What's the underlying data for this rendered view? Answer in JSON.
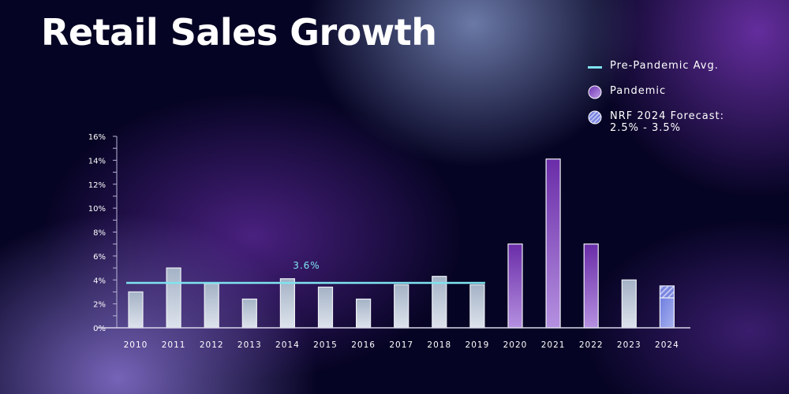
{
  "title": "Retail Sales Growth",
  "legend": [
    {
      "label": "Pre-Pandemic Avg.",
      "icon": "line-swatch",
      "color": "#7fe3f0"
    },
    {
      "label": "Pandemic",
      "icon": "circle-swatch",
      "color": "#8a4fc9"
    },
    {
      "label": "NRF 2024 Forecast:",
      "label2": "2.5% - 3.5%",
      "icon": "hatched-circle-swatch",
      "color": "#7b86e0"
    }
  ],
  "chart_data": {
    "type": "bar",
    "title": "Retail Sales Growth",
    "categories": [
      "2010",
      "2011",
      "2012",
      "2013",
      "2014",
      "2015",
      "2016",
      "2017",
      "2018",
      "2019",
      "2020",
      "2021",
      "2022",
      "2023",
      "2024"
    ],
    "values": [
      3.0,
      5.0,
      3.7,
      2.4,
      4.1,
      3.4,
      2.4,
      3.6,
      4.3,
      3.6,
      7.0,
      14.1,
      7.0,
      4.0,
      2.5
    ],
    "groups": [
      "normal",
      "normal",
      "normal",
      "normal",
      "normal",
      "normal",
      "normal",
      "normal",
      "normal",
      "normal",
      "pandemic",
      "pandemic",
      "pandemic",
      "normal",
      "forecast"
    ],
    "forecast_range": {
      "category": "2024",
      "low": 2.5,
      "high": 3.5
    },
    "reference_line": {
      "label": "3.6%",
      "value": 3.6,
      "from": "2010",
      "to": "2019"
    },
    "ylim": [
      0,
      16
    ],
    "yticks": [
      "0%",
      "2%",
      "4%",
      "6%",
      "8%",
      "10%",
      "12%",
      "14%",
      "16%"
    ],
    "colors": {
      "normal": "#c8d2e0",
      "pandemic": "#7d3fbf",
      "forecast": "#7b86e0",
      "avg_line": "#7fe3f0"
    },
    "grid": false,
    "legend_position": "top-right"
  }
}
